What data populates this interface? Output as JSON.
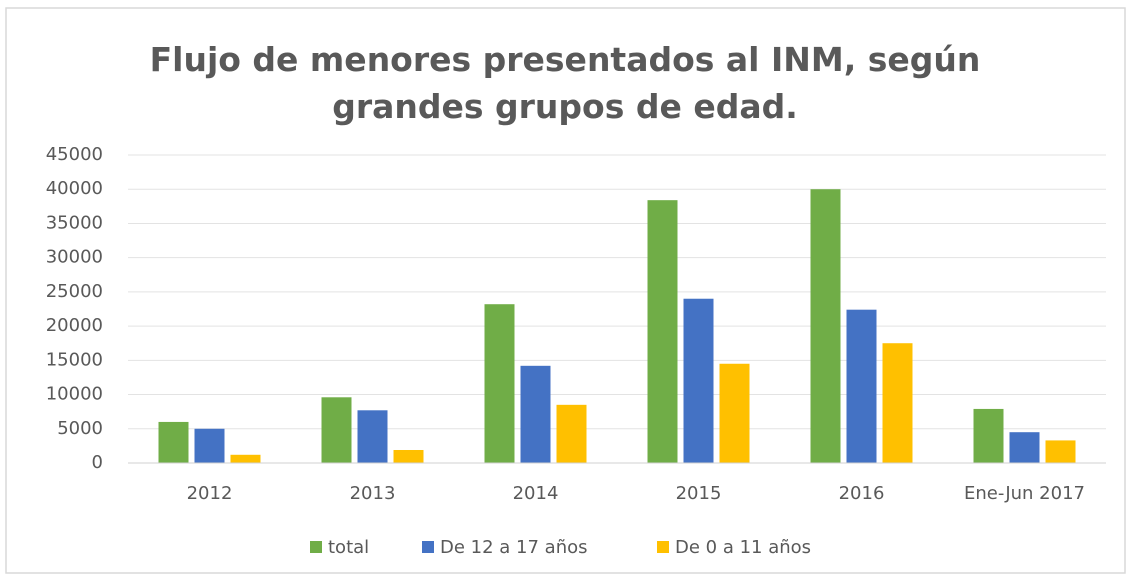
{
  "chart_data": {
    "type": "bar",
    "title": "Flujo de menores presentados al INM, según grandes grupos de edad.",
    "categories": [
      "2012",
      "2013",
      "2014",
      "2015",
      "2016",
      "Ene-Jun 2017"
    ],
    "series": [
      {
        "name": "total",
        "color": "#70ad47",
        "values": [
          6000,
          9600,
          23200,
          38400,
          40000,
          7900
        ]
      },
      {
        "name": "De 12 a 17 años",
        "color": "#4472c4",
        "values": [
          5000,
          7700,
          14200,
          24000,
          22400,
          4500
        ]
      },
      {
        "name": "De 0 a 11 años",
        "color": "#ffc000",
        "values": [
          1200,
          1900,
          8500,
          14500,
          17500,
          3300
        ]
      }
    ],
    "ylim": [
      0,
      45000
    ],
    "yticks": [
      0,
      5000,
      10000,
      15000,
      20000,
      25000,
      30000,
      35000,
      40000,
      45000
    ],
    "grid": true,
    "legend": "bottom"
  }
}
